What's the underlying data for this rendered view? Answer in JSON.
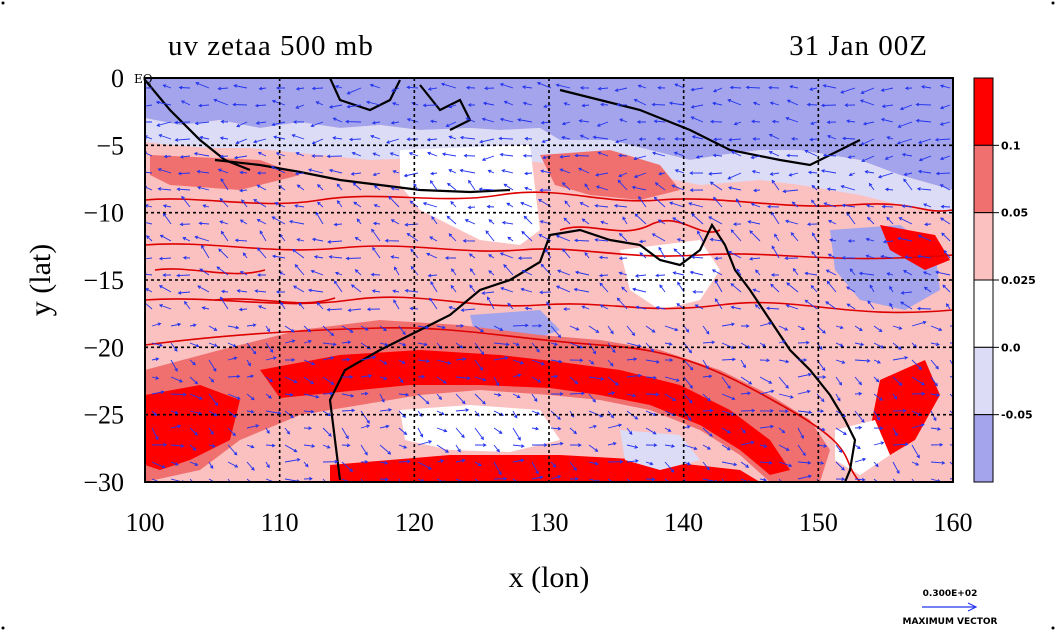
{
  "title_left": "uv zetaa 500 mb",
  "title_right": "31 Jan 00Z",
  "equator_label": "EQ",
  "max_vector": {
    "value": "0.300E+02",
    "label": "MAXIMUM VECTOR"
  },
  "colors": {
    "strong_positive": "#ff0000",
    "positive": "#f07070",
    "weak_positive": "#fbc0c0",
    "zero": "#ffffff",
    "weak_negative": "#dcdcf7",
    "negative": "#a4a4ec",
    "vector": "#2233ee",
    "contour": "#dd0000",
    "coast": "#000000"
  },
  "chart_data": {
    "type": "heatmap",
    "xlabel": "x (lon)",
    "ylabel": "y (lat)",
    "xlim": [
      100,
      160
    ],
    "ylim": [
      -30,
      0
    ],
    "xticks": [
      100,
      110,
      120,
      130,
      140,
      150,
      160
    ],
    "yticks": [
      0,
      -5,
      -10,
      -15,
      -20,
      -25,
      -30
    ],
    "grid": true,
    "colorbar": {
      "levels": [
        "0.1",
        "0.05",
        "0.025",
        "0.0",
        "-0.05"
      ],
      "colors": [
        "#ff0000",
        "#f07070",
        "#fbc0c0",
        "#ffffff",
        "#dcdcf7",
        "#a4a4ec"
      ]
    }
  }
}
